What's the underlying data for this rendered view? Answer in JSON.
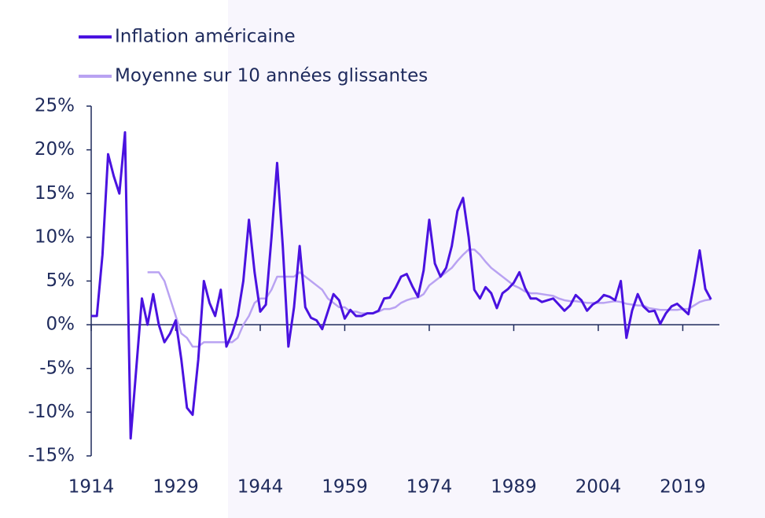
{
  "chart_data": {
    "type": "line",
    "x": [
      1914,
      1915,
      1916,
      1917,
      1918,
      1919,
      1920,
      1921,
      1922,
      1923,
      1924,
      1925,
      1926,
      1927,
      1928,
      1929,
      1930,
      1931,
      1932,
      1933,
      1934,
      1935,
      1936,
      1937,
      1938,
      1939,
      1940,
      1941,
      1942,
      1943,
      1944,
      1945,
      1946,
      1947,
      1948,
      1949,
      1950,
      1951,
      1952,
      1953,
      1954,
      1955,
      1956,
      1957,
      1958,
      1959,
      1960,
      1961,
      1962,
      1963,
      1964,
      1965,
      1966,
      1967,
      1968,
      1969,
      1970,
      1971,
      1972,
      1973,
      1974,
      1975,
      1976,
      1977,
      1978,
      1979,
      1980,
      1981,
      1982,
      1983,
      1984,
      1985,
      1986,
      1987,
      1988,
      1989,
      1990,
      1991,
      1992,
      1993,
      1994,
      1995,
      1996,
      1997,
      1998,
      1999,
      2000,
      2001,
      2002,
      2003,
      2004,
      2005,
      2006,
      2007,
      2008,
      2009,
      2010,
      2011,
      2012,
      2013,
      2014,
      2015,
      2016,
      2017,
      2018,
      2019,
      2020,
      2021,
      2022,
      2023,
      2024
    ],
    "series": [
      {
        "name": "Inflation américaine",
        "color": "#4a12e0",
        "values": [
          1,
          1,
          8,
          19.5,
          17,
          15,
          22,
          -13,
          -5,
          3,
          0,
          3.5,
          0,
          -2,
          -1,
          0.5,
          -4,
          -9.5,
          -10.3,
          -4,
          5,
          2.5,
          1,
          4,
          -2.5,
          -1,
          1,
          5,
          12,
          6,
          1.5,
          2.3,
          10,
          18.5,
          9,
          -2.5,
          2,
          9,
          2,
          0.8,
          0.5,
          -0.5,
          1.5,
          3.5,
          2.8,
          0.7,
          1.7,
          1,
          1,
          1.3,
          1.3,
          1.6,
          3,
          3.1,
          4.2,
          5.5,
          5.8,
          4.4,
          3.2,
          6.2,
          12,
          7,
          5.5,
          6.5,
          9,
          13,
          14.5,
          10,
          4,
          3,
          4.3,
          3.6,
          1.9,
          3.6,
          4.1,
          4.8,
          6,
          4.2,
          3,
          3,
          2.6,
          2.8,
          3,
          2.3,
          1.6,
          2.2,
          3.4,
          2.8,
          1.6,
          2.3,
          2.7,
          3.4,
          3.2,
          2.8,
          5,
          -1.5,
          1.6,
          3.5,
          2.1,
          1.5,
          1.6,
          0.1,
          1.3,
          2.1,
          2.4,
          1.8,
          1.2,
          4.7,
          8.5,
          4.1,
          2.9
        ]
      },
      {
        "name": "Moyenne sur 10 années glissantes",
        "color": "#b9a2f2",
        "values": [
          null,
          null,
          null,
          null,
          null,
          null,
          null,
          null,
          null,
          null,
          6,
          6,
          6,
          5,
          3,
          1,
          -1,
          -1.5,
          -2.5,
          -2.5,
          -2,
          -2,
          -2,
          -2,
          -2,
          -2,
          -1.5,
          0,
          1,
          2.5,
          3,
          3,
          4,
          5.5,
          5.5,
          5.5,
          5.5,
          6,
          5.5,
          5,
          4.5,
          4,
          3,
          2.5,
          2,
          2,
          1.5,
          1.5,
          1.3,
          1.3,
          1.3,
          1.5,
          1.8,
          1.8,
          2,
          2.5,
          2.8,
          3,
          3.1,
          3.5,
          4.5,
          5,
          5.5,
          6,
          6.5,
          7.3,
          8,
          8.6,
          8.6,
          8,
          7.2,
          6.5,
          6,
          5.5,
          5,
          4.5,
          4.2,
          3.8,
          3.6,
          3.6,
          3.5,
          3.4,
          3.3,
          3,
          2.8,
          2.7,
          2.7,
          2.6,
          2.5,
          2.5,
          2.5,
          2.5,
          2.6,
          2.7,
          2.6,
          2.4,
          2.3,
          2.2,
          2.2,
          1.9,
          1.8,
          1.7,
          1.7,
          1.7,
          1.7,
          1.8,
          1.8,
          2.2,
          2.6,
          2.8,
          2.9
        ]
      }
    ],
    "xlim": [
      1914,
      2025.5
    ],
    "xticks": [
      1914,
      1929,
      1944,
      1959,
      1974,
      1989,
      2004,
      2019
    ],
    "ylim": [
      -15,
      25
    ],
    "yticks": [
      {
        "value": -15,
        "label": "-15%"
      },
      {
        "value": -10,
        "label": "-10%"
      },
      {
        "value": -5,
        "label": "-5%"
      },
      {
        "value": 0,
        "label": "0%"
      },
      {
        "value": 5,
        "label": "5%"
      },
      {
        "value": 10,
        "label": "10%"
      },
      {
        "value": 15,
        "label": "15%"
      },
      {
        "value": 20,
        "label": "20%"
      },
      {
        "value": 25,
        "label": "25%"
      }
    ]
  }
}
